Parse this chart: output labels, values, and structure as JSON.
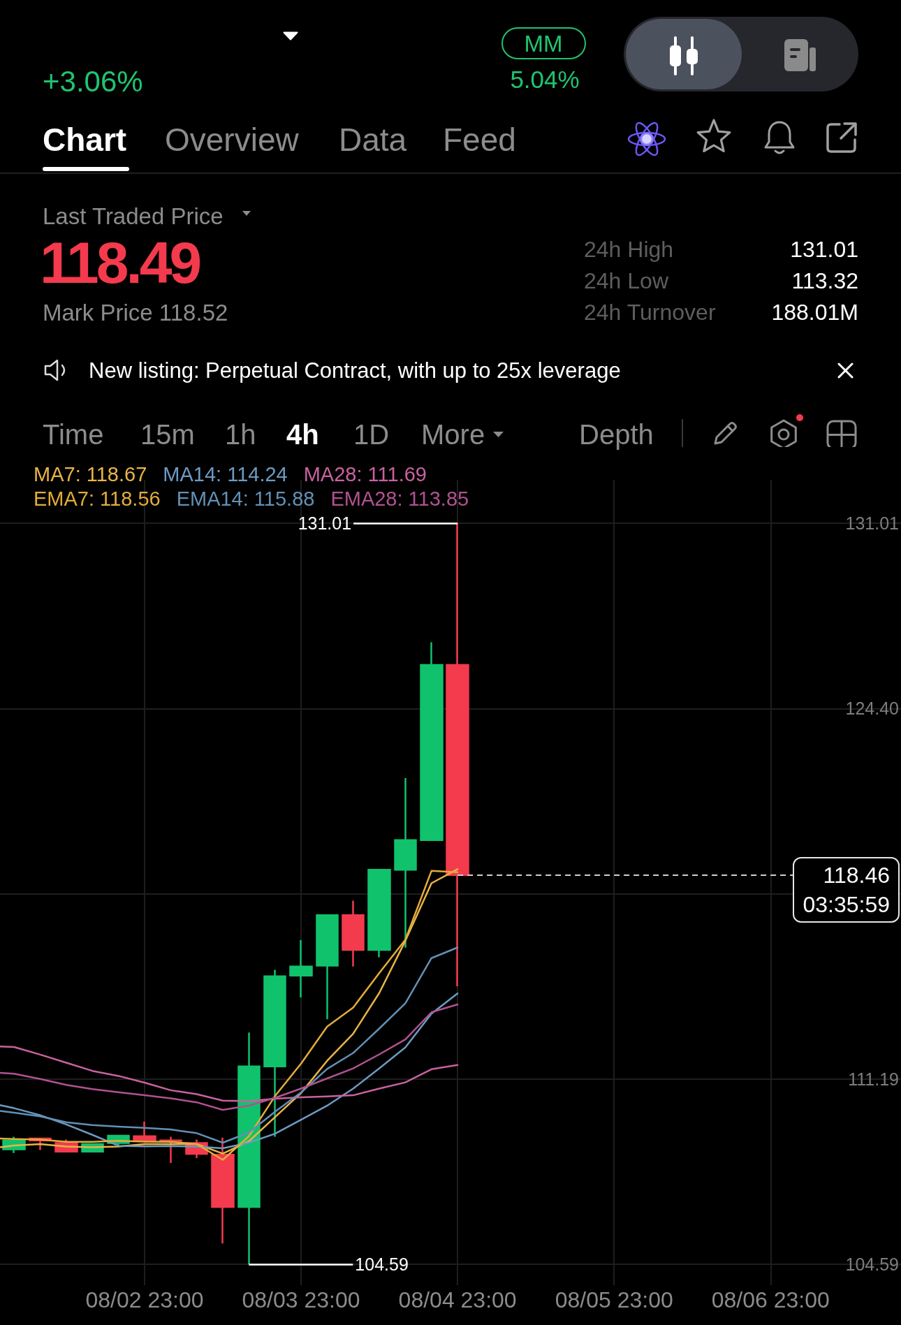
{
  "chart_data": {
    "type": "candlestick",
    "x": [
      "--08-02T03:00",
      "--08-02T07:00",
      "--08-02T11:00",
      "--08-02T15:00",
      "--08-02T19:00",
      "--08-02T23:00",
      "--08-03T03:00",
      "--08-03T07:00",
      "--08-03T11:00",
      "--08-03T15:00",
      "--08-03T19:00",
      "--08-03T23:00",
      "--08-04T03:00",
      "--08-04T07:00",
      "--08-04T11:00",
      "--08-04T15:00",
      "--08-04T19:00",
      "--08-04T23:00"
    ],
    "ohlc": [
      [
        108.68,
        109.13,
        108.55,
        109.0
      ],
      [
        109.07,
        109.1,
        108.66,
        109.0
      ],
      [
        108.91,
        109.03,
        108.6,
        108.6
      ],
      [
        108.6,
        108.9,
        108.58,
        108.87
      ],
      [
        108.91,
        109.17,
        108.8,
        109.17
      ],
      [
        109.15,
        109.67,
        108.97,
        108.99
      ],
      [
        109.0,
        109.13,
        108.2,
        108.98
      ],
      [
        108.91,
        109.03,
        108.37,
        108.52
      ],
      [
        108.49,
        109.1,
        105.33,
        106.63
      ],
      [
        106.63,
        112.85,
        104.59,
        111.64
      ],
      [
        111.64,
        115.08,
        109.13,
        114.85
      ],
      [
        114.88,
        116.14,
        114.1,
        115.2
      ],
      [
        115.23,
        117.06,
        113.32,
        117.03
      ],
      [
        117.03,
        117.55,
        115.2,
        115.79
      ],
      [
        115.79,
        118.65,
        115.53,
        118.65
      ],
      [
        118.65,
        121.92,
        115.87,
        119.71
      ],
      [
        119.71,
        126.76,
        119.68,
        125.95
      ],
      [
        125.95,
        131.01,
        114.5,
        118.46
      ]
    ],
    "colors": [
      "#10c26c",
      "#f43a4d",
      "#f43a4d",
      "#10c26c",
      "#10c26c",
      "#f43a4d",
      "#f43a4d",
      "#f43a4d",
      "#f43a4d",
      "#10c26c",
      "#10c26c",
      "#10c26c",
      "#10c26c",
      "#f43a4d",
      "#10c26c",
      "#10c26c",
      "#10c26c",
      "#f43a4d"
    ],
    "series": [
      {
        "type": "line",
        "name": "MA7: 118.67",
        "color": "#e9b447",
        "x": [
          "--08-02T00:50",
          "--08-02T03:00",
          "--08-02T07:00",
          "--08-02T11:00",
          "--08-02T15:00",
          "--08-02T19:00",
          "--08-02T23:00",
          "--08-03T03:00",
          "--08-03T07:00",
          "--08-03T11:00",
          "--08-03T15:00",
          "--08-03T19:00",
          "--08-03T23:00",
          "--08-04T03:00",
          "--08-04T07:00",
          "--08-04T11:00",
          "--08-04T15:00",
          "--08-04T19:00",
          "--08-04T23:00"
        ],
        "values": [
          108.76,
          108.82,
          108.87,
          108.78,
          108.76,
          108.78,
          108.87,
          108.87,
          108.87,
          108.53,
          108.97,
          109.83,
          110.69,
          111.84,
          112.81,
          114.26,
          116.12,
          118.17,
          118.67
        ]
      },
      {
        "type": "line",
        "name": "MA14: 114.24",
        "color": "#6c9bc3",
        "x": [
          "--08-02T00:50",
          "--08-02T03:00",
          "--08-02T07:00",
          "--08-02T11:00",
          "--08-02T15:00",
          "--08-02T19:00",
          "--08-02T23:00",
          "--08-03T03:00",
          "--08-03T07:00",
          "--08-03T11:00",
          "--08-03T15:00",
          "--08-03T19:00",
          "--08-03T23:00",
          "--08-04T03:00",
          "--08-04T07:00",
          "--08-04T11:00",
          "--08-04T15:00",
          "--08-04T19:00",
          "--08-04T23:00"
        ],
        "values": [
          110.26,
          110.15,
          109.9,
          109.57,
          109.2,
          108.81,
          108.79,
          108.8,
          108.78,
          108.72,
          108.92,
          109.24,
          109.74,
          110.24,
          110.85,
          111.57,
          112.32,
          113.52,
          114.24
        ]
      },
      {
        "type": "line",
        "name": "MA28: 111.69",
        "color": "#c8629f",
        "x": [
          "--08-02T00:50",
          "--08-02T03:00",
          "--08-02T07:00",
          "--08-02T11:00",
          "--08-02T15:00",
          "--08-02T19:00",
          "--08-02T23:00",
          "--08-03T03:00",
          "--08-03T07:00",
          "--08-03T11:00",
          "--08-03T15:00",
          "--08-03T19:00",
          "--08-03T23:00",
          "--08-04T03:00",
          "--08-04T07:00",
          "--08-04T11:00",
          "--08-04T15:00",
          "--08-04T19:00",
          "--08-04T23:00"
        ],
        "values": [
          112.35,
          112.33,
          112.06,
          111.77,
          111.48,
          111.3,
          111.06,
          110.79,
          110.65,
          110.42,
          110.4,
          110.49,
          110.54,
          110.57,
          110.61,
          110.85,
          111.07,
          111.54,
          111.69
        ]
      },
      {
        "type": "line",
        "name": "EMA7: 118.56",
        "color": "#e2ac3a",
        "x": [
          "--08-02T00:50",
          "--08-02T03:00",
          "--08-02T07:00",
          "--08-02T11:00",
          "--08-02T15:00",
          "--08-02T19:00",
          "--08-02T23:00",
          "--08-03T03:00",
          "--08-03T07:00",
          "--08-03T11:00",
          "--08-03T15:00",
          "--08-03T19:00",
          "--08-03T23:00",
          "--08-04T03:00",
          "--08-04T07:00",
          "--08-04T11:00",
          "--08-04T15:00",
          "--08-04T19:00",
          "--08-04T23:00"
        ],
        "values": [
          109.07,
          109.05,
          109.03,
          108.95,
          108.95,
          108.99,
          108.96,
          108.95,
          108.87,
          108.31,
          109.15,
          110.58,
          111.74,
          113.06,
          113.74,
          114.97,
          116.16,
          118.61,
          118.56
        ]
      },
      {
        "type": "line",
        "name": "EMA14: 115.88",
        "color": "#6290b5",
        "x": [
          "--08-02T00:50",
          "--08-02T03:00",
          "--08-02T07:00",
          "--08-02T11:00",
          "--08-02T15:00",
          "--08-02T19:00",
          "--08-02T23:00",
          "--08-03T03:00",
          "--08-03T07:00",
          "--08-03T11:00",
          "--08-03T15:00",
          "--08-03T19:00",
          "--08-03T23:00",
          "--08-04T03:00",
          "--08-04T07:00",
          "--08-04T11:00",
          "--08-04T15:00",
          "--08-04T19:00",
          "--08-04T23:00"
        ],
        "values": [
          110.05,
          109.99,
          109.86,
          109.65,
          109.55,
          109.49,
          109.45,
          109.39,
          109.26,
          108.92,
          109.28,
          110.02,
          110.71,
          111.55,
          112.12,
          112.99,
          113.89,
          115.5,
          115.88
        ]
      },
      {
        "type": "line",
        "name": "EMA28: 113.85",
        "color": "#b0528f",
        "x": [
          "--08-02T00:50",
          "--08-02T03:00",
          "--08-02T07:00",
          "--08-02T11:00",
          "--08-02T15:00",
          "--08-02T19:00",
          "--08-02T23:00",
          "--08-03T03:00",
          "--08-03T07:00",
          "--08-03T11:00",
          "--08-03T15:00",
          "--08-03T19:00",
          "--08-03T23:00",
          "--08-04T03:00",
          "--08-04T07:00",
          "--08-04T11:00",
          "--08-04T15:00",
          "--08-04T19:00",
          "--08-04T23:00"
        ],
        "values": [
          111.41,
          111.38,
          111.19,
          110.98,
          110.83,
          110.72,
          110.61,
          110.5,
          110.36,
          110.09,
          110.24,
          110.52,
          110.85,
          111.21,
          111.57,
          112.07,
          112.6,
          113.57,
          113.85
        ]
      }
    ],
    "xlim": [
      "--08-02T00:50",
      "--08-07T19:00"
    ],
    "xticks": [
      {
        "value": "--08-02T23:00",
        "label": "08/02 23:00"
      },
      {
        "value": "--08-03T23:00",
        "label": "08/03 23:00"
      },
      {
        "value": "--08-04T23:00",
        "label": "08/04 23:00"
      },
      {
        "value": "--08-05T23:00",
        "label": "08/05 23:00"
      },
      {
        "value": "--08-06T23:00",
        "label": "08/06 23:00"
      }
    ],
    "ylim": [
      103.84,
      132.55
    ],
    "yticks": [
      104.59,
      111.19,
      {
        "value": 117.8,
        "label": null
      },
      {
        "value": 124.4,
        "label": "124.40"
      },
      131.01
    ],
    "grid": true,
    "legend": "top left",
    "marker": "none",
    "ref_lines": [
      {
        "axis": "y",
        "value": 118.46,
        "label": "118.46",
        "line_style": "dashed",
        "color": "#d0d0d0"
      }
    ],
    "annotations": [
      "+3.06%",
      "MM",
      "5.04%",
      "Chart",
      "Overview",
      "Data",
      "Feed",
      "Last Traded Price",
      "118.49",
      "Mark Price 118.52",
      "24h High",
      "131.01",
      "24h Low",
      "113.32",
      "24h Turnover",
      "188.01M",
      "New listing: Perpetual Contract, with up to 25x leverage",
      "Time",
      "15m",
      "1h",
      "4h",
      "1D",
      "More",
      "Depth",
      {
        "text": "131.01",
        "x": "--08-04T23:00",
        "y": 131.01
      },
      {
        "text": "104.59",
        "x": "--08-03T15:00",
        "y": 104.59
      },
      "03:35:59"
    ]
  }
}
